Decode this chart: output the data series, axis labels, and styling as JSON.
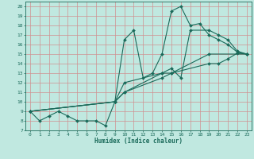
{
  "xlabel": "Humidex (Indice chaleur)",
  "bg_color": "#c0e8e0",
  "grid_color": "#d09090",
  "line_color": "#1a6a5a",
  "xlim": [
    -0.5,
    23.5
  ],
  "ylim": [
    7,
    20.5
  ],
  "xticks": [
    0,
    1,
    2,
    3,
    4,
    5,
    6,
    7,
    8,
    9,
    10,
    11,
    12,
    13,
    14,
    15,
    16,
    17,
    18,
    19,
    20,
    21,
    22,
    23
  ],
  "yticks": [
    7,
    8,
    9,
    10,
    11,
    12,
    13,
    14,
    15,
    16,
    17,
    18,
    19,
    20
  ],
  "line1_x": [
    0,
    1,
    2,
    3,
    4,
    5,
    6,
    7,
    8,
    9,
    10,
    11,
    12,
    13,
    14,
    15,
    16,
    17,
    18,
    19,
    20,
    21,
    22,
    23
  ],
  "line1_y": [
    9,
    8,
    8.5,
    9,
    8.5,
    8,
    8,
    8,
    7.5,
    10,
    16.5,
    17.5,
    12.5,
    13,
    15,
    19.5,
    20,
    18,
    18.2,
    17,
    16.5,
    16,
    15.2,
    15
  ],
  "line2_x": [
    0,
    9,
    10,
    14,
    15,
    16,
    17,
    19,
    20,
    21,
    22,
    23
  ],
  "line2_y": [
    9,
    10,
    12,
    13,
    13.5,
    12.5,
    17.5,
    17.5,
    17,
    16.5,
    15.3,
    15
  ],
  "line3_x": [
    0,
    9,
    10,
    14,
    15,
    19,
    20,
    21,
    22,
    23
  ],
  "line3_y": [
    9,
    10,
    11,
    12.5,
    13,
    14,
    14,
    14.5,
    15.1,
    15
  ],
  "line4_x": [
    0,
    9,
    10,
    14,
    15,
    19,
    23
  ],
  "line4_y": [
    9,
    10,
    11,
    13,
    13,
    15,
    15
  ]
}
